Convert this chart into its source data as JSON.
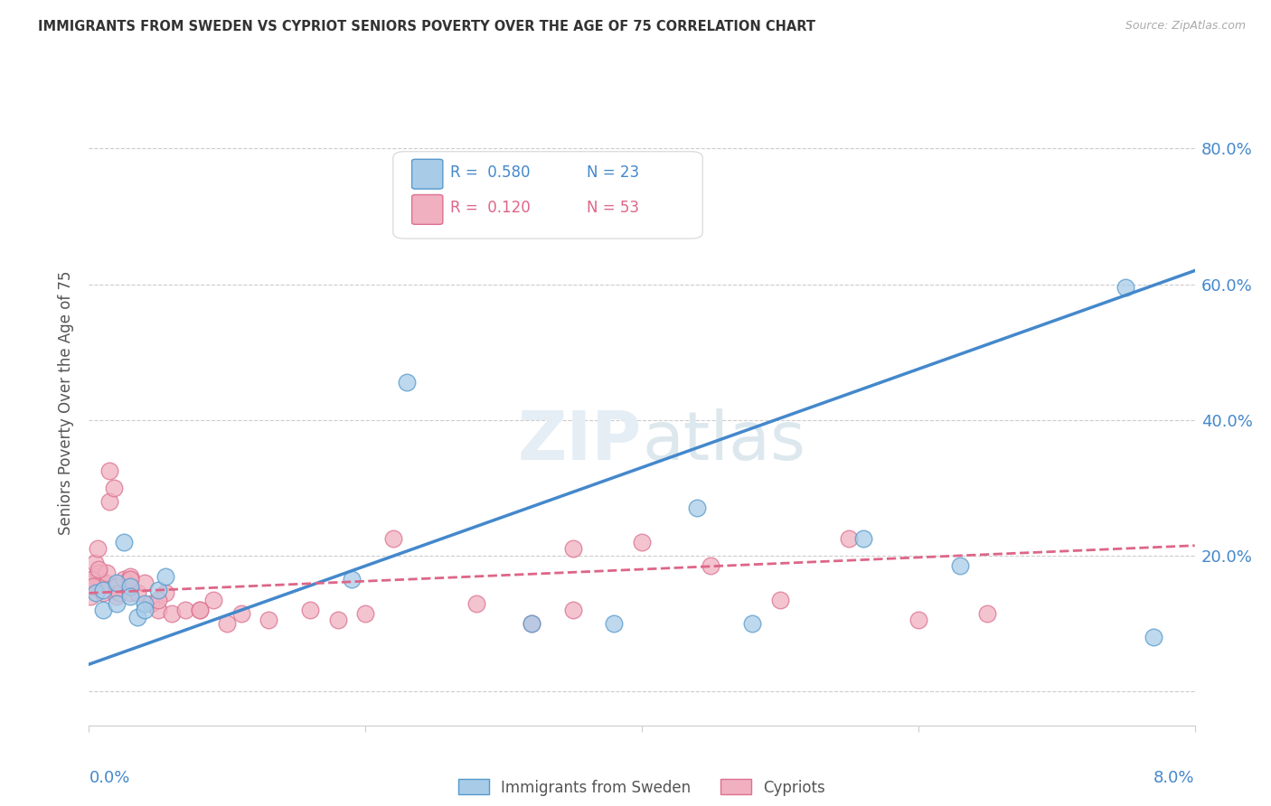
{
  "title": "IMMIGRANTS FROM SWEDEN VS CYPRIOT SENIORS POVERTY OVER THE AGE OF 75 CORRELATION CHART",
  "source": "Source: ZipAtlas.com",
  "ylabel": "Seniors Poverty Over the Age of 75",
  "xlim": [
    0.0,
    0.08
  ],
  "ylim": [
    -0.05,
    0.9
  ],
  "yticks": [
    0.0,
    0.2,
    0.4,
    0.6,
    0.8
  ],
  "ytick_labels": [
    "",
    "20.0%",
    "40.0%",
    "60.0%",
    "80.0%"
  ],
  "xtick_positions": [
    0.0,
    0.02,
    0.04,
    0.06,
    0.08
  ],
  "grid_color": "#cccccc",
  "background_color": "#ffffff",
  "sweden_fill_color": "#a8cce8",
  "sweden_edge_color": "#5599cc",
  "cypriot_fill_color": "#f0b0c0",
  "cypriot_edge_color": "#dd7090",
  "sweden_line_color": "#4488cc",
  "cypriot_line_color": "#dd6688",
  "legend_r_sweden": "0.580",
  "legend_n_sweden": "23",
  "legend_r_cypriot": "0.120",
  "legend_n_cypriot": "53",
  "sweden_x": [
    0.0005,
    0.001,
    0.001,
    0.002,
    0.002,
    0.0025,
    0.003,
    0.003,
    0.0035,
    0.004,
    0.004,
    0.005,
    0.0055,
    0.019,
    0.023,
    0.038,
    0.048,
    0.056,
    0.063,
    0.075,
    0.077,
    0.032,
    0.044
  ],
  "sweden_y": [
    0.145,
    0.15,
    0.12,
    0.16,
    0.13,
    0.22,
    0.155,
    0.14,
    0.11,
    0.13,
    0.12,
    0.15,
    0.17,
    0.165,
    0.455,
    0.1,
    0.1,
    0.225,
    0.185,
    0.595,
    0.08,
    0.1,
    0.27
  ],
  "cypriot_x": [
    0.0001,
    0.0003,
    0.0004,
    0.0005,
    0.0006,
    0.0007,
    0.0008,
    0.001,
    0.001,
    0.0012,
    0.0013,
    0.0015,
    0.0018,
    0.002,
    0.002,
    0.0022,
    0.0025,
    0.003,
    0.003,
    0.003,
    0.0035,
    0.004,
    0.0045,
    0.005,
    0.0055,
    0.006,
    0.007,
    0.008,
    0.009,
    0.01,
    0.011,
    0.013,
    0.016,
    0.018,
    0.02,
    0.022,
    0.028,
    0.032,
    0.035,
    0.04,
    0.045,
    0.05,
    0.055,
    0.06,
    0.065,
    0.0002,
    0.0003,
    0.0007,
    0.0015,
    0.003,
    0.005,
    0.008,
    0.035
  ],
  "cypriot_y": [
    0.14,
    0.165,
    0.19,
    0.17,
    0.21,
    0.175,
    0.16,
    0.145,
    0.16,
    0.16,
    0.175,
    0.28,
    0.3,
    0.155,
    0.14,
    0.145,
    0.165,
    0.145,
    0.165,
    0.17,
    0.145,
    0.16,
    0.13,
    0.12,
    0.145,
    0.115,
    0.12,
    0.12,
    0.135,
    0.1,
    0.115,
    0.105,
    0.12,
    0.105,
    0.115,
    0.225,
    0.13,
    0.1,
    0.12,
    0.22,
    0.185,
    0.135,
    0.225,
    0.105,
    0.115,
    0.165,
    0.155,
    0.18,
    0.325,
    0.165,
    0.135,
    0.12,
    0.21
  ],
  "sweden_line_x0": 0.0,
  "sweden_line_x1": 0.08,
  "sweden_line_y0": 0.04,
  "sweden_line_y1": 0.62,
  "cypriot_line_x0": 0.0,
  "cypriot_line_x1": 0.08,
  "cypriot_line_y0": 0.145,
  "cypriot_line_y1": 0.215,
  "legend_label_sweden": "Immigrants from Sweden",
  "legend_label_cypriot": "Cypriots"
}
